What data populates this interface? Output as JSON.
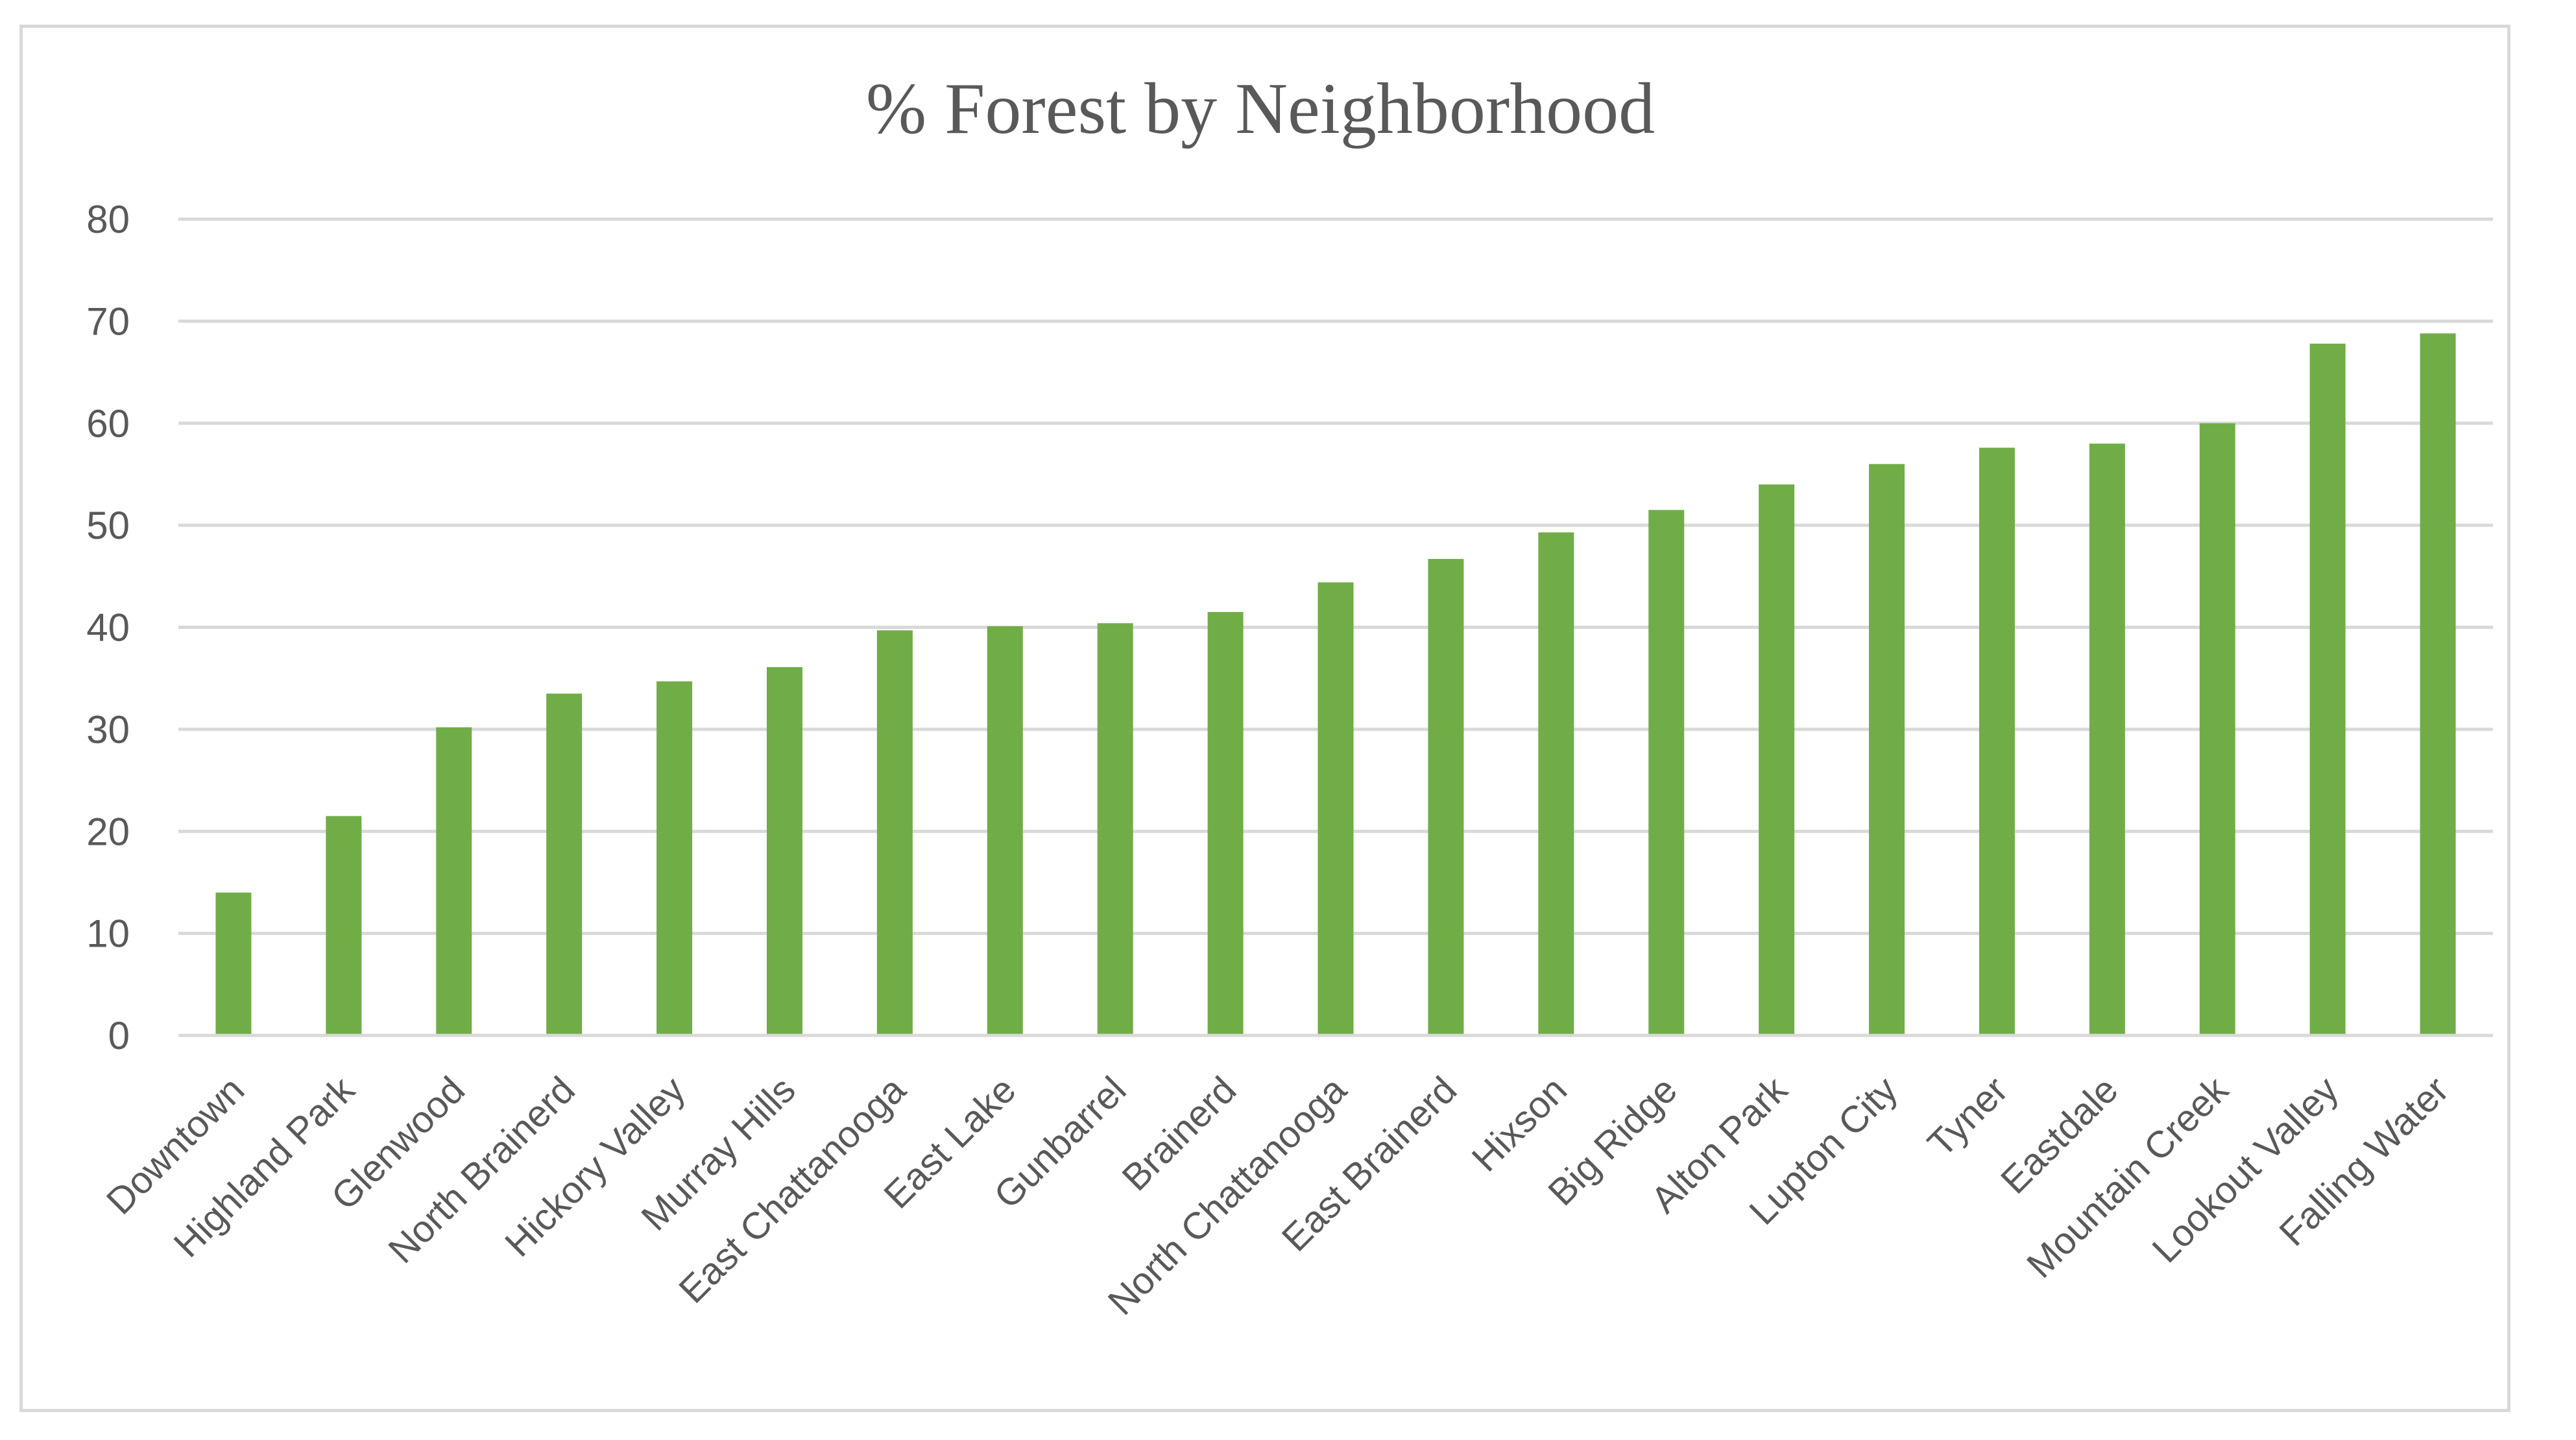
{
  "chart_data": {
    "type": "bar",
    "title": "% Forest by Neighborhood",
    "xlabel": "",
    "ylabel": "",
    "ylim": [
      0,
      80
    ],
    "yticks": [
      0,
      10,
      20,
      30,
      40,
      50,
      60,
      70,
      80
    ],
    "grid": true,
    "legend": "none",
    "bar_color": "#70ad47",
    "categories": [
      "Downtown",
      "Highland Park",
      "Glenwood",
      "North Brainerd",
      "Hickory Valley",
      "Murray Hills",
      "East Chattanooga",
      "East Lake",
      "Gunbarrel",
      "Brainerd",
      "North Chattanooga",
      "East Brainerd",
      "Hixson",
      "Big Ridge",
      "Alton Park",
      "Lupton City",
      "Tyner",
      "Eastdale",
      "Mountain Creek",
      "Lookout Valley",
      "Falling Water"
    ],
    "values": [
      14.0,
      21.5,
      30.2,
      33.5,
      34.7,
      36.1,
      39.7,
      40.1,
      40.4,
      41.5,
      44.4,
      46.7,
      49.3,
      51.5,
      54.0,
      56.0,
      57.6,
      58.0,
      60.0,
      67.8,
      68.8
    ]
  }
}
